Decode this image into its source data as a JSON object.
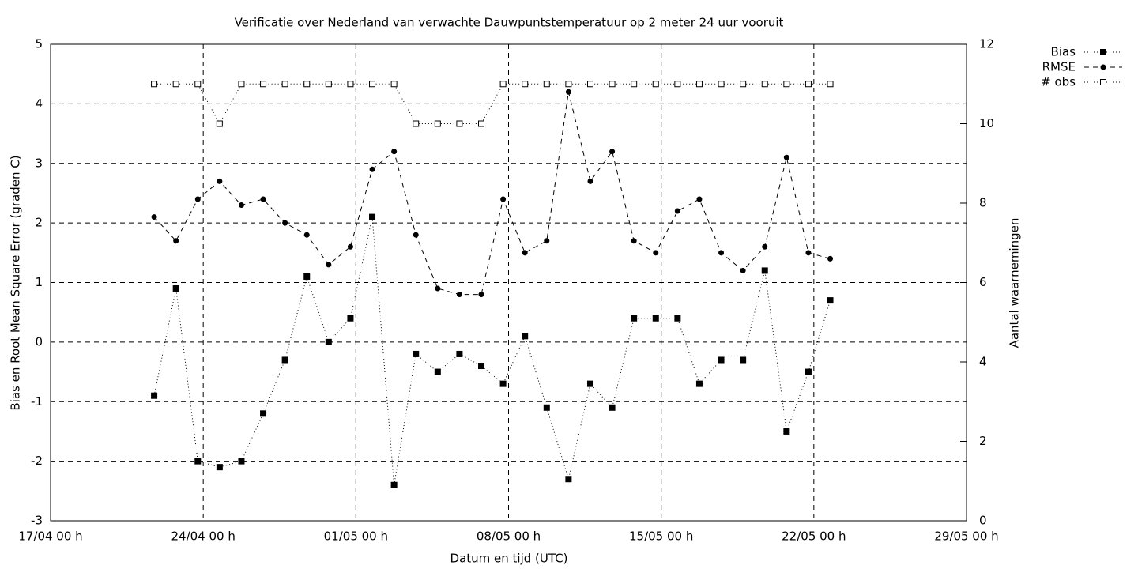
{
  "chart_data": {
    "type": "line",
    "title": "Verificatie over Nederland van verwachte Dauwpuntstemperatuur op 2 meter 24 uur vooruit",
    "xlabel": "Datum en tijd (UTC)",
    "ylabel": "Bias en Root Mean Square Error (graden C)",
    "y2label": "Aantal waarnemingen",
    "x": [
      "21/04 18 h",
      "22/04 18 h",
      "23/04 18 h",
      "24/04 18 h",
      "25/04 18 h",
      "26/04 18 h",
      "27/04 18 h",
      "28/04 18 h",
      "29/04 18 h",
      "30/04 18 h",
      "01/05 18 h",
      "02/05 18 h",
      "03/05 18 h",
      "04/05 18 h",
      "05/05 18 h",
      "06/05 18 h",
      "07/05 18 h",
      "08/05 18 h",
      "09/05 18 h",
      "10/05 18 h",
      "11/05 18 h",
      "12/05 18 h",
      "13/05 18 h",
      "14/05 18 h",
      "15/05 18 h",
      "16/05 18 h",
      "17/05 18 h",
      "18/05 18 h",
      "19/05 18 h",
      "20/05 18 h",
      "21/05 18 h",
      "22/05 18 h"
    ],
    "series": [
      {
        "name": "Bias",
        "color": "#000000",
        "dash": "dotted",
        "marker": "filled-square",
        "values": [
          -0.9,
          0.9,
          -2.0,
          -2.1,
          -2.0,
          -1.2,
          -0.3,
          1.1,
          0.0,
          0.4,
          2.1,
          -2.4,
          -0.2,
          -0.5,
          -0.2,
          -0.4,
          -0.7,
          0.1,
          -1.1,
          -2.3,
          -0.7,
          -1.1,
          0.4,
          0.4,
          0.4,
          -0.7,
          -0.3,
          -0.3,
          1.2,
          -1.5,
          -0.5,
          0.7
        ]
      },
      {
        "name": "RMSE",
        "color": "#000000",
        "dash": "dashed",
        "marker": "circle",
        "values": [
          2.1,
          1.7,
          2.4,
          2.7,
          2.3,
          2.4,
          2.0,
          1.8,
          1.3,
          1.6,
          2.9,
          3.2,
          1.8,
          0.9,
          0.8,
          0.8,
          2.4,
          1.5,
          1.7,
          4.2,
          2.7,
          3.2,
          1.7,
          1.5,
          2.2,
          2.4,
          1.5,
          1.2,
          1.6,
          3.1,
          1.5,
          1.4
        ]
      },
      {
        "name": "# obs",
        "color": "#000000",
        "dash": "dotted",
        "marker": "open-square",
        "axis": "y2",
        "values": [
          11,
          11,
          11,
          10,
          11,
          11,
          11,
          11,
          11,
          11,
          11,
          11,
          10,
          10,
          10,
          10,
          11,
          11,
          11,
          11,
          11,
          11,
          11,
          11,
          11,
          11,
          11,
          11,
          11,
          11,
          11,
          11
        ]
      }
    ],
    "xlim": [
      "17/04 00 h",
      "29/05 00 h"
    ],
    "xticks": [
      "17/04 00 h",
      "24/04 00 h",
      "01/05 00 h",
      "08/05 00 h",
      "15/05 00 h",
      "22/05 00 h",
      "29/05 00 h"
    ],
    "ylim": [
      -3,
      5
    ],
    "yticks": [
      -3,
      -2,
      -1,
      0,
      1,
      2,
      3,
      4,
      5
    ],
    "y2lim": [
      0,
      12
    ],
    "y2ticks": [
      0,
      2,
      4,
      6,
      8,
      10,
      12
    ],
    "grid": true,
    "legend": "top-right-outside"
  }
}
